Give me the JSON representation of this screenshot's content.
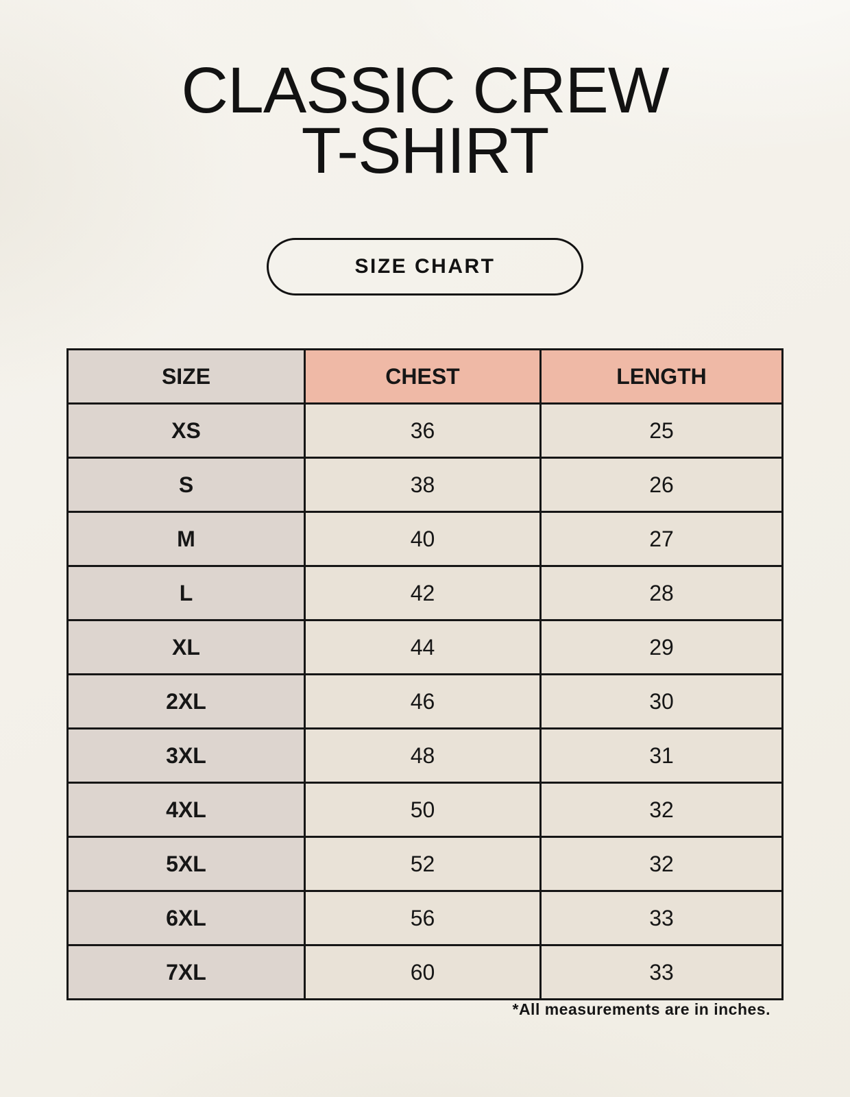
{
  "header": {
    "title_line1": "CLASSIC CREW",
    "title_line2": "T-SHIRT",
    "button_label": "SIZE CHART"
  },
  "footer": {
    "note": "*All measurements are in inches."
  },
  "colors": {
    "page_background": "#f2efe7",
    "header_pink": "#efb9a6",
    "size_column_gray": "#ddd5cf",
    "data_cell_cream": "#e9e2d7",
    "border_black": "#161616"
  },
  "chart_data": {
    "type": "table",
    "title": "SIZE CHART",
    "columns": [
      "SIZE",
      "CHEST",
      "LENGTH"
    ],
    "units": "inches",
    "rows": [
      {
        "size": "XS",
        "chest": 36,
        "length": 25
      },
      {
        "size": "S",
        "chest": 38,
        "length": 26
      },
      {
        "size": "M",
        "chest": 40,
        "length": 27
      },
      {
        "size": "L",
        "chest": 42,
        "length": 28
      },
      {
        "size": "XL",
        "chest": 44,
        "length": 29
      },
      {
        "size": "2XL",
        "chest": 46,
        "length": 30
      },
      {
        "size": "3XL",
        "chest": 48,
        "length": 31
      },
      {
        "size": "4XL",
        "chest": 50,
        "length": 32
      },
      {
        "size": "5XL",
        "chest": 52,
        "length": 32
      },
      {
        "size": "6XL",
        "chest": 56,
        "length": 33
      },
      {
        "size": "7XL",
        "chest": 60,
        "length": 33
      }
    ]
  }
}
